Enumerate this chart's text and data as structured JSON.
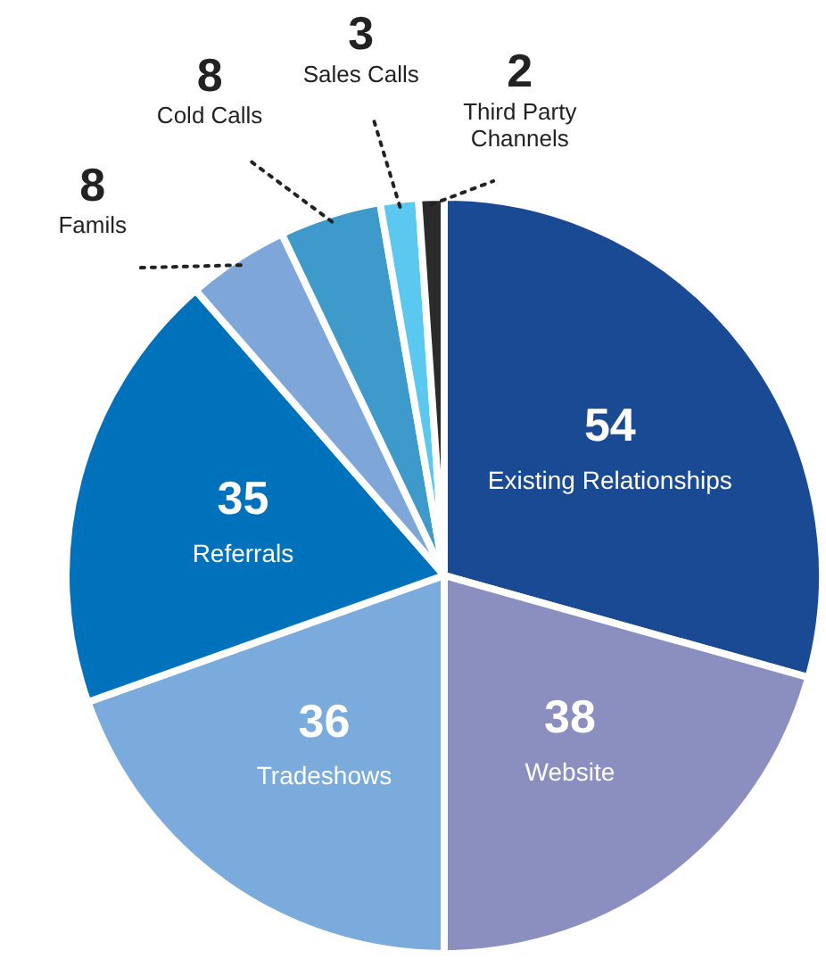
{
  "chart_data": {
    "type": "pie",
    "categories": [
      "Existing Relationships",
      "Website",
      "Tradeshows",
      "Referrals",
      "Famils",
      "Cold Calls",
      "Sales Calls",
      "Third Party Channels"
    ],
    "values": [
      54,
      38,
      36,
      35,
      8,
      8,
      3,
      2
    ],
    "colors": [
      "#1a4a94",
      "#8a8fc0",
      "#7aabdc",
      "#0072bc",
      "#7ea6d8",
      "#3d9acb",
      "#5bc8f0",
      "#2b2b2b"
    ],
    "data_labels": true,
    "legend": false
  }
}
